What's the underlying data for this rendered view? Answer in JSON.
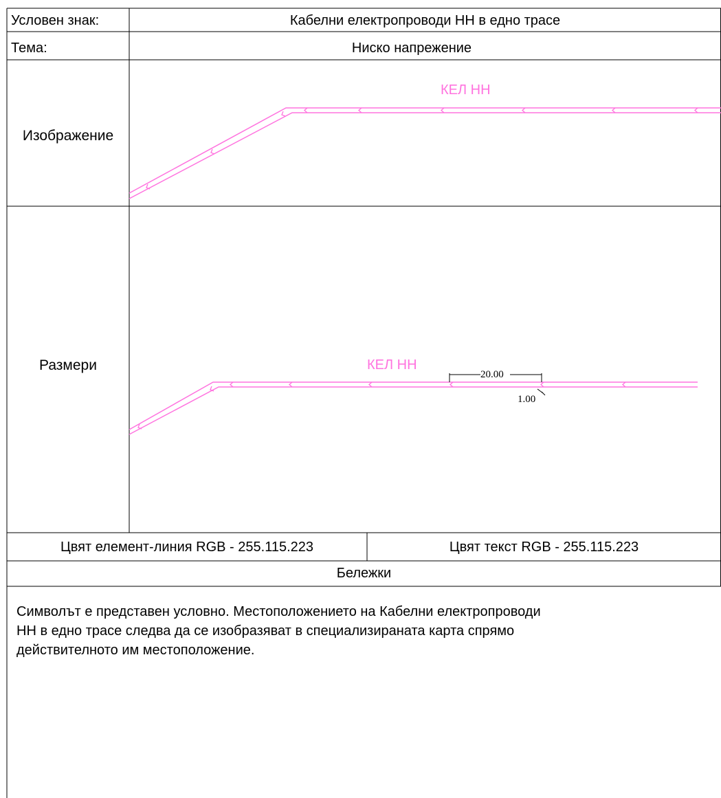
{
  "header": {
    "symbol_label": "Условен знак:",
    "symbol_value": "Кабелни електропроводи НН в едно трасе",
    "theme_label": "Тема:",
    "theme_value": "Ниско напрежение"
  },
  "image_section": {
    "label": "Изображение",
    "cable_label": "КЕЛ НН"
  },
  "dimensions_section": {
    "label": "Размери",
    "cable_label": "КЕЛ НН",
    "length_dim": "20.00",
    "offset_dim": "1.00"
  },
  "colors": {
    "line_color_text": "Цвят елемент-линия RGB - 255.115.223",
    "text_color_text": "Цвят текст RGB - 255.115.223",
    "accent": "#ff73df"
  },
  "notes": {
    "title": "Бележки",
    "lines": [
      "Символът е представен условно. Местоположението на Кабелни електропроводи",
      "НН в едно трасе следва да се изобразяват в специализираната карта спрямо",
      "действителното им местоположение."
    ]
  }
}
